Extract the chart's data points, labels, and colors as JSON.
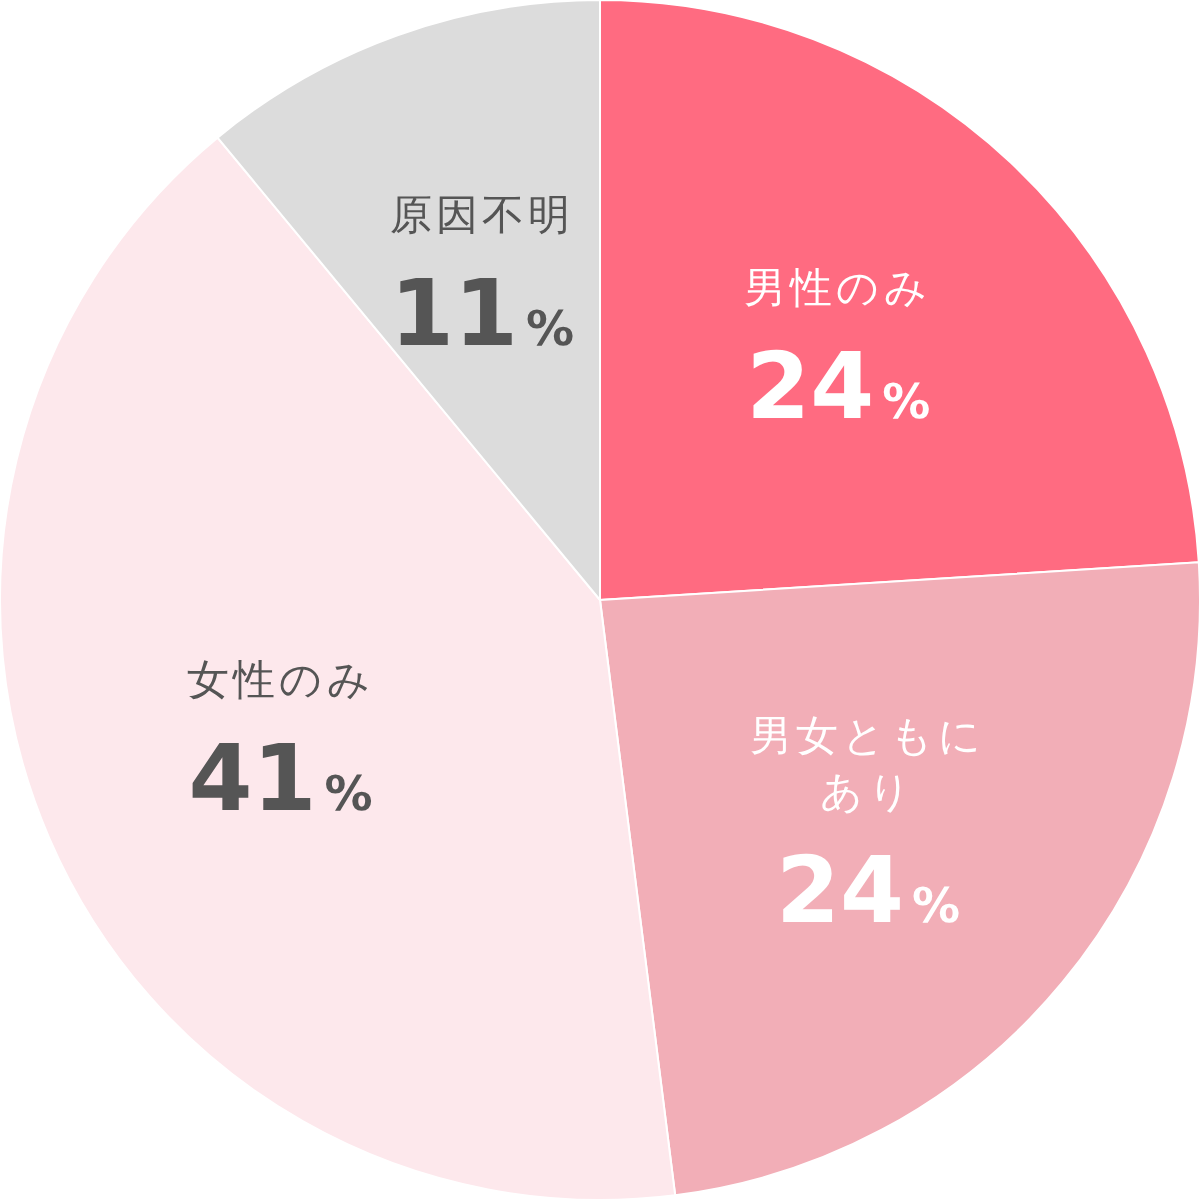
{
  "chart_data": {
    "type": "pie",
    "categories": [
      "男性のみ",
      "男女ともにあり",
      "女性のみ",
      "原因不明"
    ],
    "values": [
      24,
      24,
      41,
      11
    ],
    "colors": [
      "#ff6b81",
      "#f2aeb7",
      "#fde8ec",
      "#dcdcdc"
    ],
    "value_labels": [
      "24%",
      "24%",
      "41%",
      "11%"
    ]
  }
}
